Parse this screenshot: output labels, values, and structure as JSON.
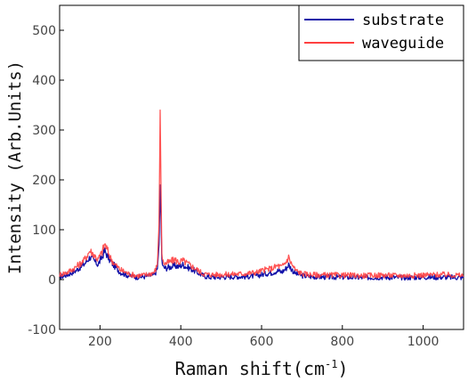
{
  "chart_data": {
    "type": "line",
    "xlabel": "Raman shift(cm",
    "xlabel_sup": "-1",
    "xlabel_end": ")",
    "ylabel": "Intensity (Arb.Units)",
    "xlim": [
      100,
      1100
    ],
    "ylim": [
      -100,
      550
    ],
    "x_ticks": [
      200,
      400,
      600,
      800,
      1000
    ],
    "y_ticks": [
      -100,
      0,
      100,
      200,
      300,
      400,
      500
    ],
    "grid": false,
    "legend_position": "top-right",
    "series": [
      {
        "name": "substrate",
        "color": "#1010a8",
        "x": [
          100,
          120,
          140,
          160,
          175,
          185,
          195,
          205,
          212,
          218,
          225,
          235,
          250,
          270,
          290,
          310,
          325,
          335,
          342,
          346,
          349,
          351,
          353,
          356,
          362,
          372,
          385,
          395,
          405,
          415,
          425,
          440,
          455,
          470,
          500,
          530,
          560,
          590,
          610,
          625,
          640,
          650,
          660,
          667,
          675,
          685,
          700,
          720,
          760,
          800,
          850,
          900,
          950,
          1000,
          1050,
          1100
        ],
        "y": [
          5,
          10,
          18,
          30,
          45,
          38,
          30,
          45,
          58,
          48,
          38,
          28,
          15,
          8,
          5,
          6,
          8,
          10,
          22,
          70,
          190,
          120,
          40,
          25,
          23,
          25,
          28,
          26,
          30,
          25,
          22,
          15,
          8,
          5,
          5,
          6,
          6,
          8,
          12,
          14,
          18,
          15,
          22,
          30,
          20,
          12,
          8,
          6,
          5,
          5,
          4,
          5,
          4,
          5,
          5,
          4
        ]
      },
      {
        "name": "waveguide",
        "color": "#ff4040",
        "x": [
          100,
          120,
          140,
          160,
          175,
          185,
          195,
          205,
          212,
          218,
          225,
          235,
          250,
          270,
          290,
          310,
          325,
          335,
          342,
          346,
          349,
          351,
          353,
          356,
          362,
          372,
          385,
          395,
          405,
          415,
          425,
          440,
          455,
          470,
          500,
          530,
          560,
          590,
          610,
          625,
          640,
          650,
          660,
          667,
          675,
          685,
          700,
          720,
          760,
          800,
          850,
          900,
          950,
          1000,
          1050,
          1100
        ],
        "y": [
          10,
          15,
          25,
          38,
          58,
          50,
          40,
          55,
          72,
          60,
          45,
          32,
          20,
          12,
          8,
          9,
          12,
          15,
          30,
          110,
          340,
          180,
          55,
          35,
          32,
          35,
          40,
          35,
          38,
          33,
          28,
          20,
          12,
          10,
          10,
          11,
          12,
          15,
          20,
          22,
          28,
          25,
          35,
          45,
          30,
          18,
          12,
          10,
          9,
          9,
          8,
          9,
          8,
          9,
          10,
          8
        ]
      }
    ]
  }
}
